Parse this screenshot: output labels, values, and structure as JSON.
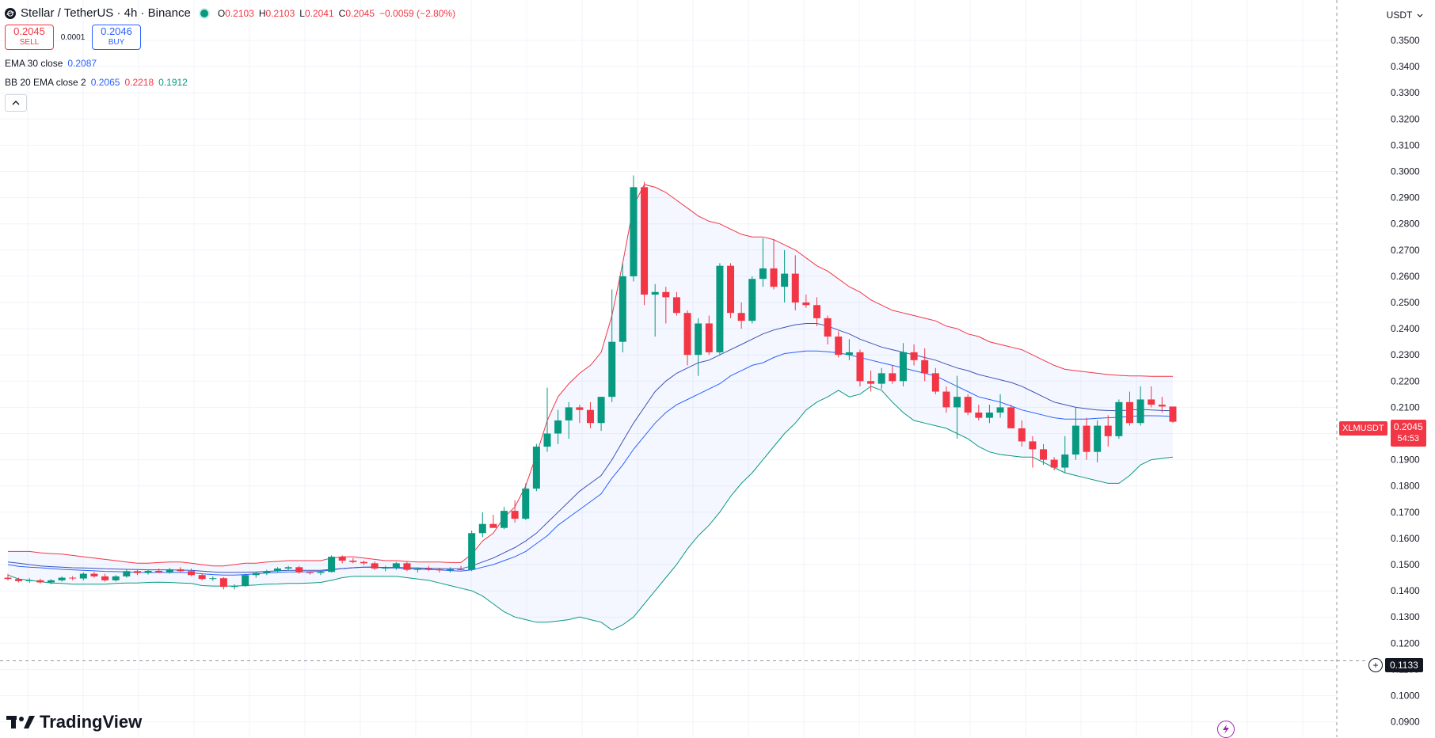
{
  "header": {
    "title": "Stellar / TetherUS · 4h · Binance",
    "ohlc": {
      "o_label": "O",
      "o": "0.2103",
      "h_label": "H",
      "h": "0.2103",
      "l_label": "L",
      "l": "0.2041",
      "c_label": "C",
      "c": "0.2045",
      "change": "−0.0059 (−2.80%)"
    }
  },
  "trade": {
    "sell_price": "0.2045",
    "sell_label": "SELL",
    "spread": "0.0001",
    "buy_price": "0.2046",
    "buy_label": "BUY"
  },
  "indicators": {
    "ema": {
      "name": "EMA 30 close",
      "value": "0.2087",
      "color": "#2962ff"
    },
    "bb": {
      "name": "BB 20 EMA close 2",
      "basis": "0.2065",
      "upper": "0.2218",
      "lower": "0.1912",
      "basis_color": "#2962ff",
      "upper_color": "#f23645",
      "lower_color": "#089981"
    }
  },
  "currency_button": {
    "label": "USDT"
  },
  "price_tag": {
    "symbol": "XLMUSDT",
    "price": "0.2045",
    "countdown": "54:53"
  },
  "crosshair": {
    "price": "0.1133"
  },
  "branding": {
    "logo_text": "TradingView"
  },
  "colors": {
    "up": "#089981",
    "down": "#f23645",
    "band_fill": "#2962ff"
  },
  "chart_data": {
    "type": "candlestick",
    "symbol": "XLMUSDT",
    "timeframe": "4h",
    "y_ticks": [
      "0.3500",
      "0.3400",
      "0.3300",
      "0.3200",
      "0.3100",
      "0.3000",
      "0.2900",
      "0.2800",
      "0.2700",
      "0.2600",
      "0.2500",
      "0.2400",
      "0.2300",
      "0.2200",
      "0.2100",
      "0.2000",
      "0.1900",
      "0.1800",
      "0.1700",
      "0.1600",
      "0.1500",
      "0.1400",
      "0.1300",
      "0.1200",
      "0.1100",
      "0.1000",
      "0.0900"
    ],
    "ylim": [
      0.09,
      0.355
    ],
    "candles": [
      {
        "o": 0.145,
        "h": 0.1465,
        "l": 0.144,
        "c": 0.1445
      },
      {
        "o": 0.1445,
        "h": 0.145,
        "l": 0.1432,
        "c": 0.1437
      },
      {
        "o": 0.1437,
        "h": 0.1448,
        "l": 0.143,
        "c": 0.144
      },
      {
        "o": 0.144,
        "h": 0.1446,
        "l": 0.1428,
        "c": 0.1432
      },
      {
        "o": 0.1432,
        "h": 0.1445,
        "l": 0.1425,
        "c": 0.144
      },
      {
        "o": 0.144,
        "h": 0.1455,
        "l": 0.1435,
        "c": 0.145
      },
      {
        "o": 0.145,
        "h": 0.1456,
        "l": 0.144,
        "c": 0.1447
      },
      {
        "o": 0.1447,
        "h": 0.147,
        "l": 0.144,
        "c": 0.1465
      },
      {
        "o": 0.1465,
        "h": 0.1472,
        "l": 0.145,
        "c": 0.1455
      },
      {
        "o": 0.1455,
        "h": 0.1465,
        "l": 0.1435,
        "c": 0.144
      },
      {
        "o": 0.144,
        "h": 0.146,
        "l": 0.1435,
        "c": 0.1455
      },
      {
        "o": 0.1455,
        "h": 0.148,
        "l": 0.145,
        "c": 0.1475
      },
      {
        "o": 0.1475,
        "h": 0.1482,
        "l": 0.146,
        "c": 0.1468
      },
      {
        "o": 0.1468,
        "h": 0.148,
        "l": 0.1462,
        "c": 0.1476
      },
      {
        "o": 0.1476,
        "h": 0.1485,
        "l": 0.1468,
        "c": 0.147
      },
      {
        "o": 0.147,
        "h": 0.1488,
        "l": 0.1465,
        "c": 0.1482
      },
      {
        "o": 0.1482,
        "h": 0.149,
        "l": 0.147,
        "c": 0.1475
      },
      {
        "o": 0.1475,
        "h": 0.1485,
        "l": 0.1455,
        "c": 0.146
      },
      {
        "o": 0.146,
        "h": 0.1465,
        "l": 0.144,
        "c": 0.1445
      },
      {
        "o": 0.1445,
        "h": 0.1455,
        "l": 0.1438,
        "c": 0.1448
      },
      {
        "o": 0.1448,
        "h": 0.1452,
        "l": 0.1405,
        "c": 0.1415
      },
      {
        "o": 0.1415,
        "h": 0.1425,
        "l": 0.1405,
        "c": 0.1418
      },
      {
        "o": 0.1418,
        "h": 0.1465,
        "l": 0.1415,
        "c": 0.146
      },
      {
        "o": 0.146,
        "h": 0.1472,
        "l": 0.145,
        "c": 0.1468
      },
      {
        "o": 0.1468,
        "h": 0.148,
        "l": 0.146,
        "c": 0.1475
      },
      {
        "o": 0.1475,
        "h": 0.149,
        "l": 0.147,
        "c": 0.1485
      },
      {
        "o": 0.1485,
        "h": 0.1495,
        "l": 0.1478,
        "c": 0.149
      },
      {
        "o": 0.149,
        "h": 0.1495,
        "l": 0.1465,
        "c": 0.147
      },
      {
        "o": 0.147,
        "h": 0.1475,
        "l": 0.1462,
        "c": 0.1468
      },
      {
        "o": 0.1468,
        "h": 0.1478,
        "l": 0.146,
        "c": 0.1472
      },
      {
        "o": 0.1472,
        "h": 0.1535,
        "l": 0.147,
        "c": 0.153
      },
      {
        "o": 0.153,
        "h": 0.1535,
        "l": 0.1505,
        "c": 0.1515
      },
      {
        "o": 0.1515,
        "h": 0.1525,
        "l": 0.1505,
        "c": 0.151
      },
      {
        "o": 0.151,
        "h": 0.1515,
        "l": 0.1498,
        "c": 0.1505
      },
      {
        "o": 0.1505,
        "h": 0.1512,
        "l": 0.148,
        "c": 0.1485
      },
      {
        "o": 0.1485,
        "h": 0.1495,
        "l": 0.1475,
        "c": 0.1488
      },
      {
        "o": 0.1488,
        "h": 0.151,
        "l": 0.148,
        "c": 0.1505
      },
      {
        "o": 0.1505,
        "h": 0.1512,
        "l": 0.1475,
        "c": 0.148
      },
      {
        "o": 0.148,
        "h": 0.149,
        "l": 0.147,
        "c": 0.1485
      },
      {
        "o": 0.1485,
        "h": 0.1495,
        "l": 0.1475,
        "c": 0.1482
      },
      {
        "o": 0.1482,
        "h": 0.1488,
        "l": 0.147,
        "c": 0.1478
      },
      {
        "o": 0.1478,
        "h": 0.149,
        "l": 0.147,
        "c": 0.1482
      },
      {
        "o": 0.1482,
        "h": 0.1495,
        "l": 0.1478,
        "c": 0.148
      },
      {
        "o": 0.148,
        "h": 0.163,
        "l": 0.1475,
        "c": 0.162
      },
      {
        "o": 0.162,
        "h": 0.17,
        "l": 0.1605,
        "c": 0.1655
      },
      {
        "o": 0.1655,
        "h": 0.169,
        "l": 0.164,
        "c": 0.164
      },
      {
        "o": 0.164,
        "h": 0.172,
        "l": 0.1635,
        "c": 0.1705
      },
      {
        "o": 0.1705,
        "h": 0.1745,
        "l": 0.166,
        "c": 0.1675
      },
      {
        "o": 0.1675,
        "h": 0.181,
        "l": 0.167,
        "c": 0.179
      },
      {
        "o": 0.179,
        "h": 0.196,
        "l": 0.178,
        "c": 0.195
      },
      {
        "o": 0.195,
        "h": 0.2175,
        "l": 0.193,
        "c": 0.2
      },
      {
        "o": 0.2,
        "h": 0.209,
        "l": 0.196,
        "c": 0.205
      },
      {
        "o": 0.205,
        "h": 0.212,
        "l": 0.198,
        "c": 0.21
      },
      {
        "o": 0.21,
        "h": 0.211,
        "l": 0.204,
        "c": 0.209
      },
      {
        "o": 0.209,
        "h": 0.212,
        "l": 0.202,
        "c": 0.204
      },
      {
        "o": 0.204,
        "h": 0.214,
        "l": 0.201,
        "c": 0.214
      },
      {
        "o": 0.214,
        "h": 0.255,
        "l": 0.212,
        "c": 0.235
      },
      {
        "o": 0.235,
        "h": 0.265,
        "l": 0.231,
        "c": 0.26
      },
      {
        "o": 0.26,
        "h": 0.2985,
        "l": 0.258,
        "c": 0.294
      },
      {
        "o": 0.294,
        "h": 0.296,
        "l": 0.249,
        "c": 0.253
      },
      {
        "o": 0.253,
        "h": 0.257,
        "l": 0.237,
        "c": 0.254
      },
      {
        "o": 0.254,
        "h": 0.256,
        "l": 0.242,
        "c": 0.252
      },
      {
        "o": 0.252,
        "h": 0.254,
        "l": 0.245,
        "c": 0.246
      },
      {
        "o": 0.246,
        "h": 0.247,
        "l": 0.226,
        "c": 0.23
      },
      {
        "o": 0.23,
        "h": 0.244,
        "l": 0.222,
        "c": 0.242
      },
      {
        "o": 0.242,
        "h": 0.245,
        "l": 0.23,
        "c": 0.231
      },
      {
        "o": 0.231,
        "h": 0.265,
        "l": 0.23,
        "c": 0.264
      },
      {
        "o": 0.264,
        "h": 0.265,
        "l": 0.244,
        "c": 0.246
      },
      {
        "o": 0.246,
        "h": 0.25,
        "l": 0.24,
        "c": 0.243
      },
      {
        "o": 0.243,
        "h": 0.26,
        "l": 0.242,
        "c": 0.259
      },
      {
        "o": 0.259,
        "h": 0.2745,
        "l": 0.256,
        "c": 0.263
      },
      {
        "o": 0.263,
        "h": 0.274,
        "l": 0.255,
        "c": 0.256
      },
      {
        "o": 0.256,
        "h": 0.27,
        "l": 0.25,
        "c": 0.261
      },
      {
        "o": 0.261,
        "h": 0.268,
        "l": 0.247,
        "c": 0.25
      },
      {
        "o": 0.25,
        "h": 0.253,
        "l": 0.248,
        "c": 0.249
      },
      {
        "o": 0.249,
        "h": 0.252,
        "l": 0.241,
        "c": 0.244
      },
      {
        "o": 0.244,
        "h": 0.245,
        "l": 0.234,
        "c": 0.237
      },
      {
        "o": 0.237,
        "h": 0.239,
        "l": 0.229,
        "c": 0.23
      },
      {
        "o": 0.23,
        "h": 0.236,
        "l": 0.228,
        "c": 0.231
      },
      {
        "o": 0.231,
        "h": 0.232,
        "l": 0.218,
        "c": 0.22
      },
      {
        "o": 0.22,
        "h": 0.224,
        "l": 0.216,
        "c": 0.219
      },
      {
        "o": 0.219,
        "h": 0.225,
        "l": 0.217,
        "c": 0.223
      },
      {
        "o": 0.223,
        "h": 0.226,
        "l": 0.219,
        "c": 0.22
      },
      {
        "o": 0.22,
        "h": 0.2345,
        "l": 0.218,
        "c": 0.231
      },
      {
        "o": 0.231,
        "h": 0.234,
        "l": 0.226,
        "c": 0.228
      },
      {
        "o": 0.228,
        "h": 0.2325,
        "l": 0.22,
        "c": 0.223
      },
      {
        "o": 0.223,
        "h": 0.225,
        "l": 0.215,
        "c": 0.216
      },
      {
        "o": 0.216,
        "h": 0.218,
        "l": 0.208,
        "c": 0.21
      },
      {
        "o": 0.21,
        "h": 0.222,
        "l": 0.198,
        "c": 0.214
      },
      {
        "o": 0.214,
        "h": 0.215,
        "l": 0.207,
        "c": 0.208
      },
      {
        "o": 0.208,
        "h": 0.211,
        "l": 0.205,
        "c": 0.206
      },
      {
        "o": 0.206,
        "h": 0.211,
        "l": 0.204,
        "c": 0.208
      },
      {
        "o": 0.208,
        "h": 0.215,
        "l": 0.206,
        "c": 0.21
      },
      {
        "o": 0.21,
        "h": 0.211,
        "l": 0.202,
        "c": 0.202
      },
      {
        "o": 0.202,
        "h": 0.205,
        "l": 0.195,
        "c": 0.197
      },
      {
        "o": 0.197,
        "h": 0.199,
        "l": 0.187,
        "c": 0.194
      },
      {
        "o": 0.194,
        "h": 0.196,
        "l": 0.188,
        "c": 0.19
      },
      {
        "o": 0.19,
        "h": 0.191,
        "l": 0.186,
        "c": 0.187
      },
      {
        "o": 0.187,
        "h": 0.199,
        "l": 0.185,
        "c": 0.192
      },
      {
        "o": 0.192,
        "h": 0.21,
        "l": 0.19,
        "c": 0.203
      },
      {
        "o": 0.203,
        "h": 0.206,
        "l": 0.19,
        "c": 0.193
      },
      {
        "o": 0.193,
        "h": 0.205,
        "l": 0.189,
        "c": 0.203
      },
      {
        "o": 0.203,
        "h": 0.207,
        "l": 0.195,
        "c": 0.199
      },
      {
        "o": 0.199,
        "h": 0.213,
        "l": 0.198,
        "c": 0.212
      },
      {
        "o": 0.212,
        "h": 0.216,
        "l": 0.203,
        "c": 0.204
      },
      {
        "o": 0.204,
        "h": 0.218,
        "l": 0.203,
        "c": 0.213
      },
      {
        "o": 0.213,
        "h": 0.218,
        "l": 0.21,
        "c": 0.211
      },
      {
        "o": 0.211,
        "h": 0.214,
        "l": 0.208,
        "c": 0.2103
      },
      {
        "o": 0.2103,
        "h": 0.2103,
        "l": 0.2041,
        "c": 0.2045
      }
    ],
    "bb_upper": [
      0.155,
      0.155,
      0.155,
      0.1545,
      0.1542,
      0.154,
      0.1535,
      0.153,
      0.1525,
      0.152,
      0.1515,
      0.151,
      0.1505,
      0.1505,
      0.1508,
      0.151,
      0.151,
      0.1505,
      0.15,
      0.1495,
      0.1495,
      0.15,
      0.1505,
      0.1505,
      0.151,
      0.1512,
      0.1515,
      0.1515,
      0.1515,
      0.1515,
      0.1525,
      0.153,
      0.153,
      0.1525,
      0.152,
      0.1515,
      0.1515,
      0.1512,
      0.151,
      0.151,
      0.151,
      0.1508,
      0.1508,
      0.154,
      0.159,
      0.162,
      0.168,
      0.172,
      0.18,
      0.192,
      0.205,
      0.214,
      0.219,
      0.223,
      0.226,
      0.231,
      0.245,
      0.265,
      0.287,
      0.295,
      0.294,
      0.292,
      0.289,
      0.286,
      0.283,
      0.281,
      0.28,
      0.278,
      0.276,
      0.275,
      0.275,
      0.274,
      0.272,
      0.27,
      0.267,
      0.264,
      0.262,
      0.259,
      0.256,
      0.254,
      0.251,
      0.249,
      0.247,
      0.246,
      0.245,
      0.244,
      0.243,
      0.241,
      0.24,
      0.238,
      0.237,
      0.235,
      0.234,
      0.233,
      0.232,
      0.23,
      0.228,
      0.226,
      0.2245,
      0.224,
      0.2235,
      0.223,
      0.2225,
      0.2222,
      0.222,
      0.222,
      0.2218,
      0.2218,
      0.2218
    ],
    "bb_lower": [
      0.146,
      0.1445,
      0.144,
      0.1435,
      0.143,
      0.1428,
      0.1425,
      0.1425,
      0.1425,
      0.1425,
      0.1428,
      0.143,
      0.143,
      0.1432,
      0.1433,
      0.1432,
      0.143,
      0.1428,
      0.142,
      0.1418,
      0.1418,
      0.1418,
      0.142,
      0.1422,
      0.1425,
      0.1426,
      0.1428,
      0.1428,
      0.143,
      0.1432,
      0.144,
      0.145,
      0.1455,
      0.1455,
      0.1455,
      0.1455,
      0.1455,
      0.145,
      0.1445,
      0.144,
      0.143,
      0.142,
      0.141,
      0.14,
      0.138,
      0.135,
      0.132,
      0.13,
      0.129,
      0.128,
      0.128,
      0.1285,
      0.129,
      0.13,
      0.129,
      0.128,
      0.125,
      0.127,
      0.13,
      0.135,
      0.14,
      0.145,
      0.15,
      0.156,
      0.161,
      0.165,
      0.17,
      0.176,
      0.181,
      0.185,
      0.19,
      0.195,
      0.2,
      0.204,
      0.209,
      0.212,
      0.214,
      0.2165,
      0.214,
      0.215,
      0.218,
      0.2165,
      0.212,
      0.208,
      0.205,
      0.204,
      0.203,
      0.202,
      0.2,
      0.198,
      0.195,
      0.193,
      0.192,
      0.1915,
      0.191,
      0.191,
      0.189,
      0.187,
      0.185,
      0.184,
      0.183,
      0.182,
      0.181,
      0.181,
      0.184,
      0.188,
      0.19,
      0.1905,
      0.191
    ],
    "bb_basis": [
      0.15,
      0.1493,
      0.149,
      0.1488,
      0.1485,
      0.1482,
      0.148,
      0.1478,
      0.1476,
      0.1474,
      0.1473,
      0.1472,
      0.147,
      0.147,
      0.147,
      0.147,
      0.147,
      0.1469,
      0.1465,
      0.1462,
      0.146,
      0.146,
      0.1462,
      0.1465,
      0.1468,
      0.147,
      0.1472,
      0.1472,
      0.1473,
      0.1474,
      0.148,
      0.1485,
      0.1488,
      0.149,
      0.149,
      0.1487,
      0.1487,
      0.1485,
      0.1483,
      0.1481,
      0.148,
      0.1477,
      0.1475,
      0.148,
      0.149,
      0.15,
      0.1515,
      0.153,
      0.155,
      0.158,
      0.161,
      0.165,
      0.168,
      0.171,
      0.174,
      0.177,
      0.183,
      0.188,
      0.194,
      0.199,
      0.204,
      0.208,
      0.211,
      0.213,
      0.215,
      0.217,
      0.219,
      0.222,
      0.224,
      0.226,
      0.227,
      0.229,
      0.2305,
      0.231,
      0.2315,
      0.2315,
      0.2312,
      0.2308,
      0.23,
      0.229,
      0.228,
      0.227,
      0.226,
      0.225,
      0.224,
      0.223,
      0.222,
      0.22,
      0.218,
      0.216,
      0.214,
      0.213,
      0.212,
      0.2105,
      0.209,
      0.208,
      0.207,
      0.206,
      0.2055,
      0.2055,
      0.2055,
      0.2058,
      0.206,
      0.2062,
      0.2065,
      0.2068,
      0.2068,
      0.2067,
      0.2065
    ],
    "ema": [
      0.151,
      0.1505,
      0.15,
      0.1495,
      0.1492,
      0.149,
      0.1488,
      0.1487,
      0.1486,
      0.1484,
      0.1483,
      0.1482,
      0.1481,
      0.148,
      0.148,
      0.148,
      0.1479,
      0.1478,
      0.1475,
      0.1472,
      0.147,
      0.147,
      0.1471,
      0.1472,
      0.1474,
      0.1476,
      0.1478,
      0.1478,
      0.1478,
      0.1478,
      0.1482,
      0.1485,
      0.1488,
      0.149,
      0.149,
      0.1489,
      0.1489,
      0.1488,
      0.1487,
      0.1486,
      0.1485,
      0.1484,
      0.1484,
      0.1495,
      0.151,
      0.1525,
      0.1545,
      0.1565,
      0.159,
      0.162,
      0.166,
      0.17,
      0.174,
      0.178,
      0.181,
      0.184,
      0.19,
      0.197,
      0.204,
      0.21,
      0.216,
      0.22,
      0.223,
      0.225,
      0.227,
      0.228,
      0.23,
      0.232,
      0.234,
      0.236,
      0.238,
      0.2395,
      0.2405,
      0.2415,
      0.242,
      0.242,
      0.241,
      0.2395,
      0.238,
      0.236,
      0.2345,
      0.233,
      0.232,
      0.231,
      0.23,
      0.229,
      0.228,
      0.2265,
      0.225,
      0.224,
      0.2225,
      0.2215,
      0.2205,
      0.2195,
      0.218,
      0.216,
      0.214,
      0.212,
      0.211,
      0.21,
      0.2095,
      0.209,
      0.2088,
      0.2087,
      0.209,
      0.2092,
      0.209,
      0.2088,
      0.2087
    ]
  }
}
